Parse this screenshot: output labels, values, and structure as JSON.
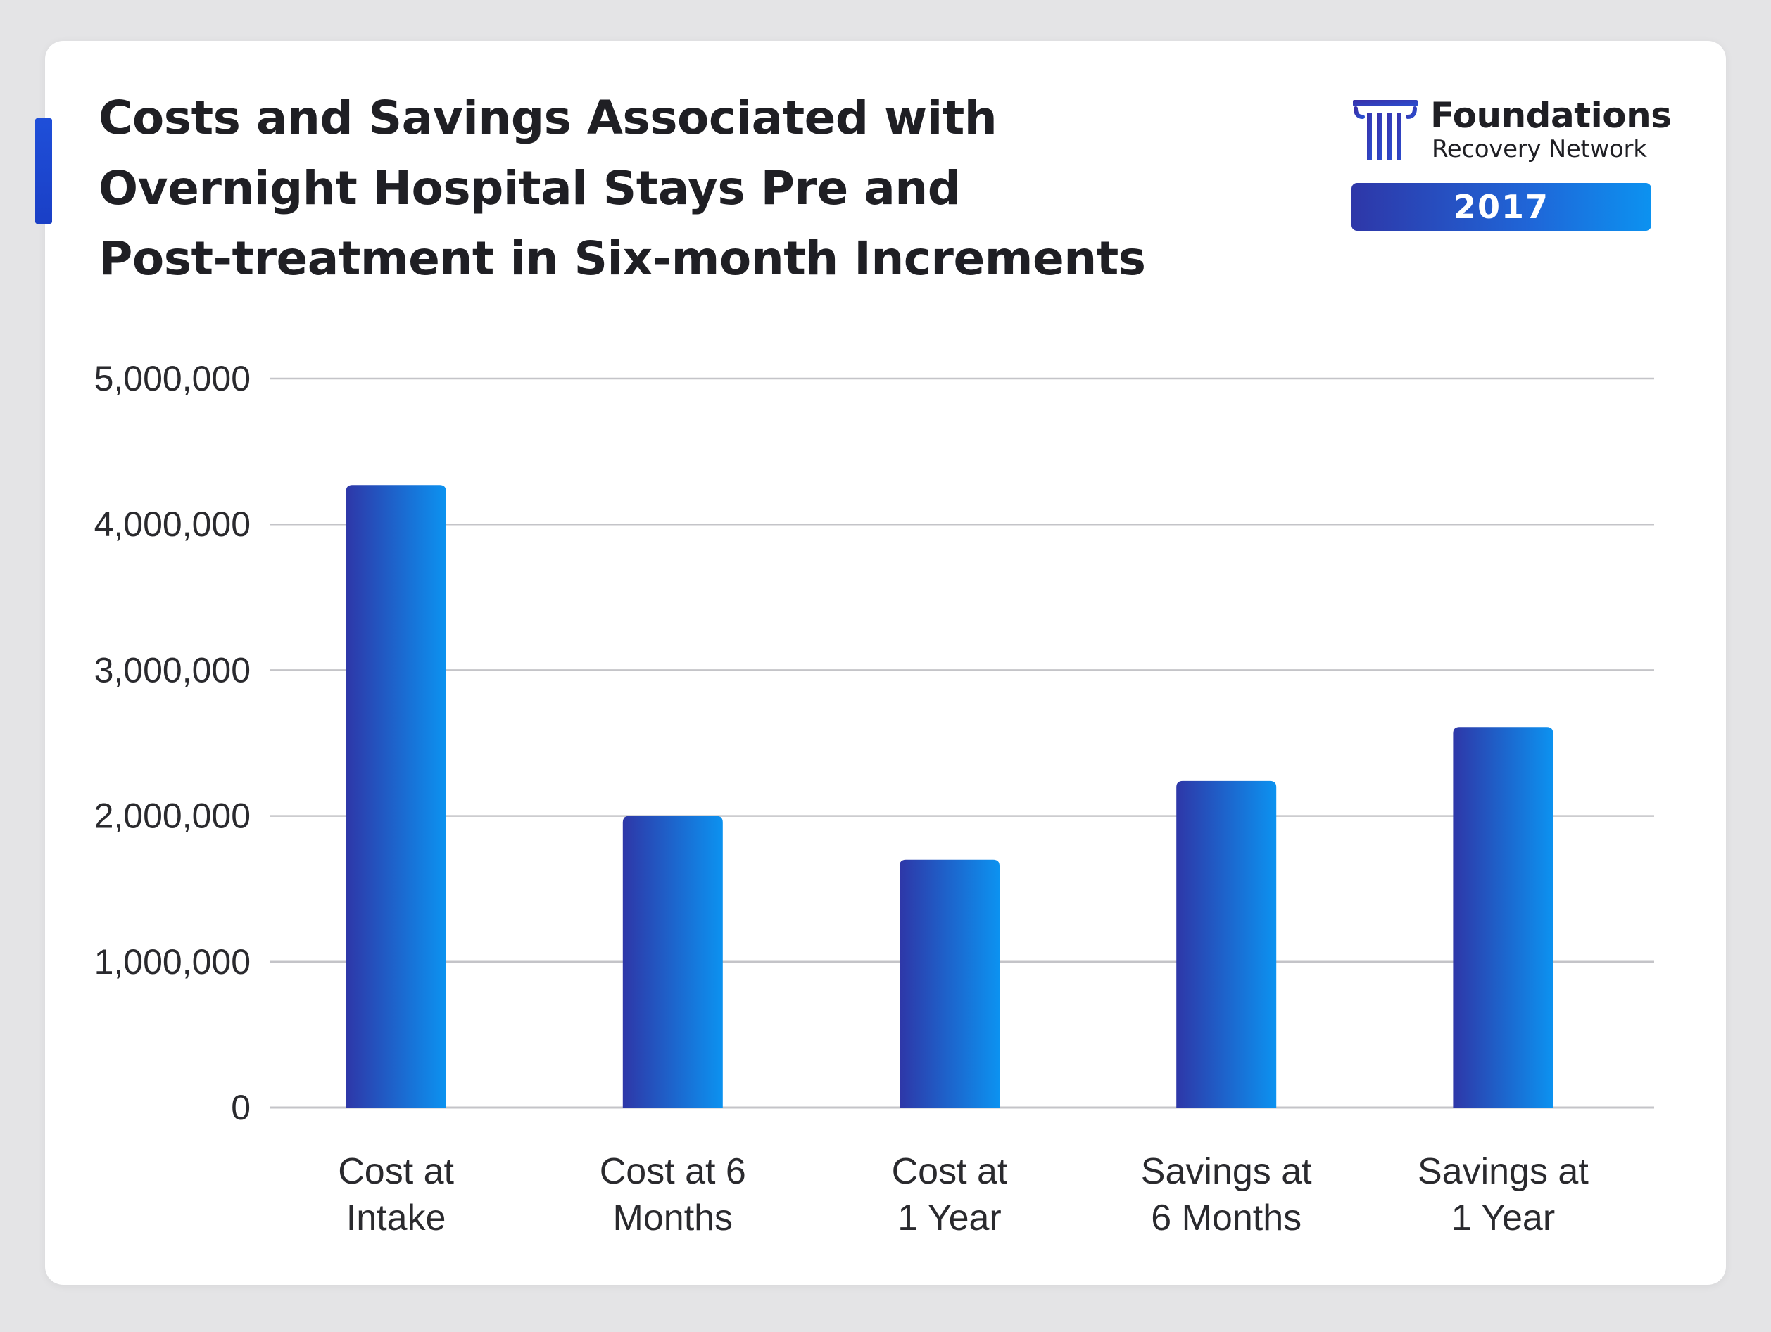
{
  "title_lines": [
    "Costs and Savings Associated with",
    "Overnight Hospital Stays Pre and",
    "Post-treatment in Six-month Increments"
  ],
  "brand": {
    "name": "Foundations",
    "subtitle": "Recovery Network",
    "year": "2017",
    "logo_icon": "pillar-icon"
  },
  "colors": {
    "bar_start": "#2e37a8",
    "bar_end": "#0c92f0",
    "accent": "#1f4fd9",
    "grid": "#c4c4c8"
  },
  "chart_data": {
    "type": "bar",
    "title": "Costs and Savings Associated with Overnight Hospital Stays Pre and Post-treatment in Six-month Increments",
    "categories": [
      [
        "Cost at",
        "Intake"
      ],
      [
        "Cost at 6",
        "Months"
      ],
      [
        "Cost at",
        "1 Year"
      ],
      [
        "Savings at",
        "6 Months"
      ],
      [
        "Savings at",
        "1 Year"
      ]
    ],
    "values": [
      4270000,
      2000000,
      1700000,
      2240000,
      2610000
    ],
    "ylim": [
      0,
      5000000
    ],
    "yticks": [
      "0",
      "1,000,000",
      "2,000,000",
      "3,000,000",
      "4,000,000",
      "5,000,000"
    ],
    "ytick_values": [
      0,
      1000000,
      2000000,
      3000000,
      4000000,
      5000000
    ],
    "grid": true,
    "xlabel": "",
    "ylabel": ""
  }
}
